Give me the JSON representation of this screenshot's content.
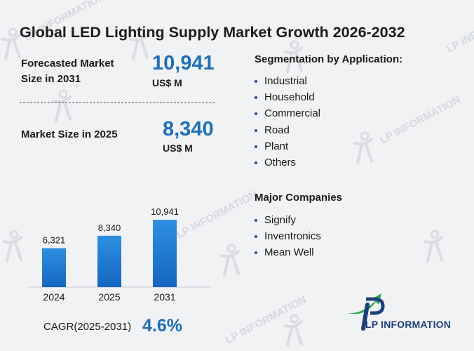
{
  "title": "Global LED Lighting Supply Market Growth 2026-2032",
  "forecast": {
    "label_line1": "Forecasted Market",
    "label_line2": "Size in 2031",
    "value": "10,941",
    "unit": "US$ M"
  },
  "current": {
    "label": "Market Size in 2025",
    "value": "8,340",
    "unit": "US$ M"
  },
  "cagr": {
    "label": "CAGR(2025-2031)",
    "value": "4.6%"
  },
  "segmentation": {
    "title": "Segmentation by Application:",
    "items": [
      "Industrial",
      "Household",
      "Commercial",
      "Road",
      "Plant",
      "Others"
    ]
  },
  "companies": {
    "title": "Major Companies",
    "items": [
      "Signify",
      "Inventronics",
      "Mean Well"
    ]
  },
  "logo": {
    "text": "LP INFORMATION",
    "watermark": "LP INFORMATION"
  },
  "colors": {
    "accent": "#1f6fb6",
    "bar_top": "#2f8fe0",
    "bar_bottom": "#1466c0",
    "logo_green": "#2aa845",
    "logo_blue": "#1e3f7a"
  },
  "chart_data": {
    "type": "bar",
    "categories": [
      "2024",
      "2025",
      "2031"
    ],
    "values": [
      6321,
      8340,
      10941
    ],
    "data_labels": [
      "6,321",
      "8,340",
      "10,941"
    ],
    "title": "",
    "xlabel": "",
    "ylabel": "",
    "ylim": [
      0,
      10941
    ],
    "grid": false,
    "legend": "none"
  }
}
